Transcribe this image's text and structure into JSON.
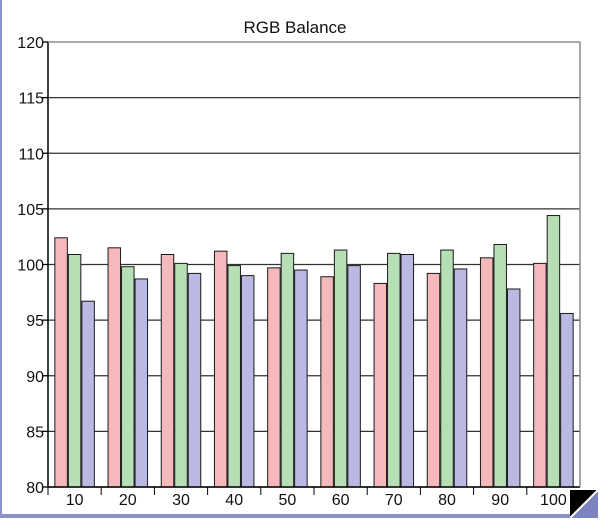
{
  "chart_data": {
    "type": "bar",
    "title": "RGB Balance",
    "categories": [
      "10",
      "20",
      "30",
      "40",
      "50",
      "60",
      "70",
      "80",
      "90",
      "100"
    ],
    "series": [
      {
        "values": [
          102.4,
          101.5,
          100.9,
          101.2,
          99.7,
          98.9,
          98.3,
          99.2,
          100.6,
          100.1
        ]
      },
      {
        "values": [
          100.9,
          99.8,
          100.1,
          99.9,
          101.0,
          101.3,
          101.0,
          101.3,
          101.8,
          104.4
        ]
      },
      {
        "values": [
          96.7,
          98.7,
          99.2,
          99.0,
          99.5,
          99.9,
          100.9,
          99.6,
          97.8,
          95.6
        ]
      }
    ],
    "ylim": [
      80,
      120
    ],
    "yticks": [
      80,
      85,
      90,
      95,
      100,
      105,
      110,
      115,
      120
    ],
    "grid": true,
    "colors": {
      "series": [
        "#f5b8bb",
        "#b6dfb6",
        "#b9b9e3"
      ],
      "bar_stroke": "#1a1a1a",
      "grid": "#333333",
      "plot_bg": "#ffffff",
      "frame": "#8a93c9"
    }
  }
}
